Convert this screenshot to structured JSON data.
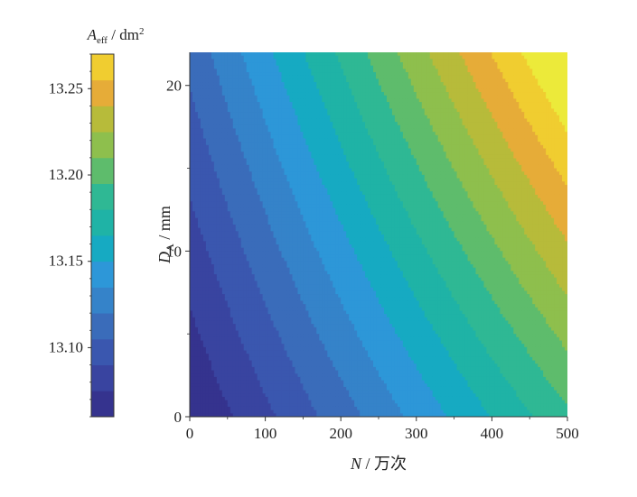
{
  "chart_data": {
    "type": "heatmap",
    "subtype": "filled-contour",
    "xlabel": {
      "var": "N",
      "unit": "万次"
    },
    "ylabel": {
      "var": "D",
      "sub": "A",
      "unit": "mm"
    },
    "xlim": [
      0,
      500
    ],
    "ylim": [
      0,
      22
    ],
    "xticks": [
      0,
      100,
      200,
      300,
      400,
      500
    ],
    "yticks": [
      0,
      10,
      20
    ],
    "colorbar": {
      "title": {
        "var": "A",
        "sub": "eff",
        "unit": "dm",
        "sup": "2"
      },
      "range": [
        13.06,
        13.27
      ],
      "ticks": [
        13.1,
        13.15,
        13.2,
        13.25
      ],
      "tick_labels": [
        "13.10",
        "13.15",
        "13.20",
        "13.25"
      ],
      "levels": [
        13.06,
        13.075,
        13.09,
        13.105,
        13.12,
        13.135,
        13.15,
        13.165,
        13.18,
        13.195,
        13.21,
        13.225,
        13.24,
        13.255,
        13.27
      ],
      "colors": [
        "#35338e",
        "#3944a0",
        "#3a57af",
        "#3a6cba",
        "#3583c9",
        "#2d97d8",
        "#16aac2",
        "#1fb3a6",
        "#2fb894",
        "#5ebc6c",
        "#8ebf4d",
        "#b7bb3a",
        "#e6ac38",
        "#f0cd30",
        "#ecea3a"
      ]
    },
    "field": {
      "form": "A = a0 + ax*N/500 + ay*D/22 + axy*(N/500)*(D/22) + axx*(N/500)^2",
      "a0": 13.06,
      "ax": 0.132,
      "ay": 0.05,
      "axy": 0.05,
      "axx": 0.0
    }
  }
}
